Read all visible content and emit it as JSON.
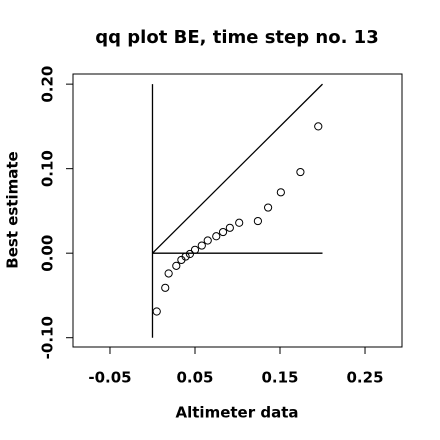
{
  "chart_data": {
    "type": "scatter",
    "title": "qq plot BE, time step no. 13",
    "x_label": "Altimeter data",
    "y_label": "Best estimate",
    "xlim": [
      -0.0935,
      0.2935
    ],
    "ylim": [
      -0.111,
      0.212
    ],
    "xticks": [
      -0.05,
      0.05,
      0.15,
      0.25
    ],
    "yticks": [
      {
        "value": -0.1,
        "label": "-0.10"
      },
      {
        "value": 0,
        "label": "0.00"
      },
      {
        "value": 0.1,
        "label": "0.10"
      },
      {
        "value": 0.2,
        "label": "0.20"
      }
    ],
    "x": [
      0.005,
      0.015,
      0.019,
      0.028,
      0.034,
      0.039,
      0.044,
      0.05,
      0.058,
      0.065,
      0.075,
      0.083,
      0.091,
      0.102,
      0.124,
      0.136,
      0.151,
      0.174,
      0.195
    ],
    "values": [
      -0.069,
      -0.041,
      -0.024,
      -0.015,
      -0.008,
      -0.004,
      -0.001,
      0.004,
      0.009,
      0.015,
      0.02,
      0.025,
      0.03,
      0.036,
      0.038,
      0.054,
      0.072,
      0.096,
      0.15
    ],
    "lines": [
      {
        "x": [
          0,
          0
        ],
        "y": [
          -0.1,
          0.2
        ]
      },
      {
        "x": [
          0,
          0.2
        ],
        "y": [
          0,
          0
        ]
      },
      {
        "x": [
          0,
          0.2
        ],
        "y": [
          0,
          0.2
        ]
      }
    ],
    "color": "#000000"
  }
}
